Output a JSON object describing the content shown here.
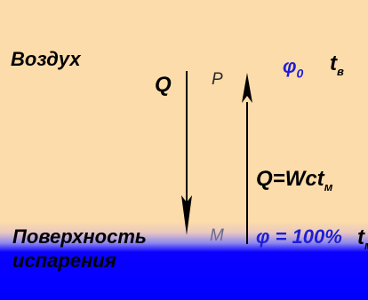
{
  "labels": {
    "air": "Воздух",
    "q": "Q",
    "p": "P",
    "phi0_main": "φ",
    "phi0_sub": "0",
    "te_main": "t",
    "te_sub": "в",
    "surface": "Поверхность",
    "evaporation": "испарения",
    "m": "M",
    "phi100": "φ = 100%",
    "tm_main": "t",
    "tm_sub": "м",
    "formula_main": "Q=Wct",
    "formula_sub": "м"
  },
  "colors": {
    "air_fill": "#fcdcaa",
    "water_fill": "#0000ff",
    "phi_text": "#1f1fd6",
    "arrow": "#000000"
  }
}
